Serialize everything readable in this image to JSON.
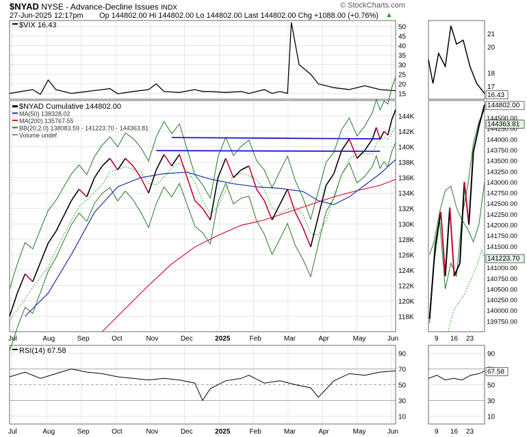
{
  "header": {
    "symbol": "$NYAD",
    "exchange": "NYSE",
    "name": "Advance-Decline Issues",
    "type": "INDX",
    "brand": "© StockCharts.com",
    "date": "27-Jun-2025 12:17pm",
    "ohlc": "Op 144802.00  Hi 144802.00  Lo 144802.00  Last 144802.00  Chg +1088.00 (+0.76%)",
    "chg_icon": "up-triangle-icon"
  },
  "colors": {
    "price_up": "#000000",
    "price_down": "#cc0033",
    "ma50": "#1a2ea8",
    "ma200": "#dd1133",
    "bb": "#227722",
    "bb_mid": "#33aa33",
    "trendline": "#1a1acc",
    "grid": "#cccccc"
  },
  "vix_panel": {
    "label": "$VIX 16.43",
    "last_tag": "16.43",
    "yticks": [
      "50",
      "45",
      "40",
      "35",
      "30",
      "25",
      "20",
      "15"
    ],
    "zoom_yticks": [
      "21",
      "20",
      "18",
      "17"
    ]
  },
  "main_panel": {
    "legend": [
      "$NYAD Cumulative 144802.00",
      "MA(50) 138328.02",
      "MA(200) 135767.55",
      "BB(20,2.0) 138083.59 - 141223.70 - 144363.81",
      "Volume undef"
    ],
    "yticks": [
      "144K",
      "142K",
      "140K",
      "138K",
      "136K",
      "134K",
      "132K",
      "130K",
      "128K",
      "126K",
      "124K",
      "122K",
      "120K",
      "118K"
    ],
    "zoom_yticks": [
      "144802.00",
      "144500.00",
      "144363.81",
      "144250.00",
      "144000.00",
      "143750.00",
      "143500.00",
      "143250.00",
      "143000.00",
      "142750.00",
      "142500.00",
      "142250.00",
      "142000.00",
      "141750.00",
      "141500.00",
      "141223.70",
      "141000.00",
      "140750.00",
      "140500.00",
      "140250.00",
      "140000.00",
      "139750.00"
    ],
    "tags": {
      "last": "144802.00",
      "bb_upper": "144363.81",
      "bb_mid": "141223.70"
    }
  },
  "rsi_panel": {
    "label": "RSI(14) 67.58",
    "last_tag": "67.58",
    "yticks": [
      "90",
      "70",
      "50",
      "30",
      "10"
    ]
  },
  "x_axis": {
    "labels": [
      "Jul",
      "Aug",
      "Sep",
      "Oct",
      "Nov",
      "Dec",
      "2025",
      "Feb",
      "Mar",
      "Apr",
      "May",
      "Jun"
    ],
    "zoom_labels": [
      "9",
      "16",
      "23"
    ]
  },
  "chart_data": {
    "type": "line",
    "title": "$NYAD NYSE - Advance-Decline Issues INDX",
    "x_range": [
      "2024-07-01",
      "2025-06-27"
    ],
    "ylim": [
      116000,
      146000
    ],
    "series": [
      {
        "name": "$NYAD Cumulative",
        "last": 144802.0,
        "values": [
          [
            0,
            118000
          ],
          [
            0.02,
            121000
          ],
          [
            0.04,
            123500
          ],
          [
            0.06,
            122500
          ],
          [
            0.08,
            125000
          ],
          [
            0.1,
            127500
          ],
          [
            0.12,
            129000
          ],
          [
            0.14,
            131000
          ],
          [
            0.16,
            133000
          ],
          [
            0.18,
            134500
          ],
          [
            0.2,
            133500
          ],
          [
            0.22,
            136000
          ],
          [
            0.24,
            137500
          ],
          [
            0.26,
            138500
          ],
          [
            0.28,
            137000
          ],
          [
            0.3,
            138500
          ],
          [
            0.32,
            137500
          ],
          [
            0.34,
            136000
          ],
          [
            0.36,
            134000
          ],
          [
            0.38,
            137000
          ],
          [
            0.4,
            139000
          ],
          [
            0.42,
            137500
          ],
          [
            0.44,
            139000
          ],
          [
            0.46,
            136000
          ],
          [
            0.48,
            133000
          ],
          [
            0.5,
            132000
          ],
          [
            0.52,
            130500
          ],
          [
            0.54,
            136000
          ],
          [
            0.56,
            138500
          ],
          [
            0.58,
            136000
          ],
          [
            0.6,
            137000
          ],
          [
            0.62,
            137500
          ],
          [
            0.64,
            134500
          ],
          [
            0.66,
            133000
          ],
          [
            0.68,
            130500
          ],
          [
            0.7,
            132500
          ],
          [
            0.72,
            134500
          ],
          [
            0.74,
            131500
          ],
          [
            0.76,
            129500
          ],
          [
            0.78,
            127000
          ],
          [
            0.8,
            131000
          ],
          [
            0.82,
            135000
          ],
          [
            0.84,
            136500
          ],
          [
            0.86,
            139500
          ],
          [
            0.88,
            141000
          ],
          [
            0.9,
            138500
          ],
          [
            0.92,
            139500
          ],
          [
            0.94,
            141000
          ],
          [
            0.95,
            142500
          ],
          [
            0.96,
            141000
          ],
          [
            0.97,
            142000
          ],
          [
            0.98,
            141500
          ],
          [
            0.99,
            143500
          ],
          [
            1,
            144802
          ]
        ]
      },
      {
        "name": "MA(50)",
        "last": 138328.02,
        "values": [
          [
            0.04,
            118000
          ],
          [
            0.1,
            121000
          ],
          [
            0.16,
            126000
          ],
          [
            0.22,
            131500
          ],
          [
            0.28,
            134800
          ],
          [
            0.34,
            136000
          ],
          [
            0.4,
            136500
          ],
          [
            0.46,
            136700
          ],
          [
            0.52,
            135800
          ],
          [
            0.58,
            135200
          ],
          [
            0.64,
            134800
          ],
          [
            0.7,
            134600
          ],
          [
            0.76,
            134200
          ],
          [
            0.8,
            133000
          ],
          [
            0.84,
            132500
          ],
          [
            0.88,
            133500
          ],
          [
            0.92,
            135000
          ],
          [
            0.96,
            136500
          ],
          [
            1,
            138328
          ]
        ]
      },
      {
        "name": "MA(200)",
        "last": 135767.55,
        "values": [
          [
            0.24,
            116000
          ],
          [
            0.3,
            119000
          ],
          [
            0.36,
            122000
          ],
          [
            0.42,
            124800
          ],
          [
            0.48,
            127000
          ],
          [
            0.54,
            128500
          ],
          [
            0.6,
            129800
          ],
          [
            0.66,
            130500
          ],
          [
            0.72,
            131500
          ],
          [
            0.78,
            132500
          ],
          [
            0.84,
            133500
          ],
          [
            0.9,
            134300
          ],
          [
            0.96,
            135000
          ],
          [
            1,
            135767
          ]
        ]
      },
      {
        "name": "BB(20,2.0)",
        "upper": 144363.81,
        "middle": 141223.7,
        "lower": 138083.59
      }
    ],
    "trendlines": [
      {
        "y": 141200,
        "x_start": 0.42,
        "x_end": 0.96
      },
      {
        "y": 139500,
        "x_start": 0.38,
        "x_end": 0.96
      }
    ],
    "vix": {
      "name": "$VIX",
      "ylim": [
        12,
        53
      ],
      "last": 16.43,
      "values": [
        [
          0,
          15
        ],
        [
          0.03,
          16
        ],
        [
          0.06,
          17
        ],
        [
          0.08,
          14.5
        ],
        [
          0.1,
          22
        ],
        [
          0.12,
          17
        ],
        [
          0.16,
          15
        ],
        [
          0.2,
          16
        ],
        [
          0.24,
          17
        ],
        [
          0.26,
          17.5
        ],
        [
          0.28,
          14.8
        ],
        [
          0.32,
          16
        ],
        [
          0.36,
          17
        ],
        [
          0.38,
          20
        ],
        [
          0.4,
          16
        ],
        [
          0.44,
          15.5
        ],
        [
          0.48,
          17
        ],
        [
          0.5,
          16
        ],
        [
          0.52,
          16
        ],
        [
          0.56,
          15.5
        ],
        [
          0.6,
          16
        ],
        [
          0.62,
          15
        ],
        [
          0.66,
          17
        ],
        [
          0.68,
          15
        ],
        [
          0.7,
          16
        ],
        [
          0.72,
          15
        ],
        [
          0.73,
          52
        ],
        [
          0.75,
          30
        ],
        [
          0.78,
          25
        ],
        [
          0.8,
          20
        ],
        [
          0.84,
          18
        ],
        [
          0.88,
          17
        ],
        [
          0.92,
          19
        ],
        [
          0.96,
          17
        ],
        [
          1,
          16.43
        ]
      ]
    },
    "rsi": {
      "name": "RSI(14)",
      "ylim": [
        0,
        100
      ],
      "last": 67.58,
      "values": [
        [
          0,
          60
        ],
        [
          0.04,
          66
        ],
        [
          0.08,
          58
        ],
        [
          0.12,
          64
        ],
        [
          0.16,
          70
        ],
        [
          0.2,
          66
        ],
        [
          0.24,
          64
        ],
        [
          0.28,
          60
        ],
        [
          0.32,
          58
        ],
        [
          0.36,
          56
        ],
        [
          0.4,
          58
        ],
        [
          0.44,
          56
        ],
        [
          0.48,
          52
        ],
        [
          0.5,
          30
        ],
        [
          0.52,
          45
        ],
        [
          0.56,
          55
        ],
        [
          0.6,
          58
        ],
        [
          0.62,
          62
        ],
        [
          0.66,
          52
        ],
        [
          0.7,
          55
        ],
        [
          0.74,
          50
        ],
        [
          0.78,
          46
        ],
        [
          0.8,
          34
        ],
        [
          0.84,
          55
        ],
        [
          0.88,
          64
        ],
        [
          0.92,
          62
        ],
        [
          0.96,
          66
        ],
        [
          1,
          67.58
        ]
      ]
    }
  }
}
